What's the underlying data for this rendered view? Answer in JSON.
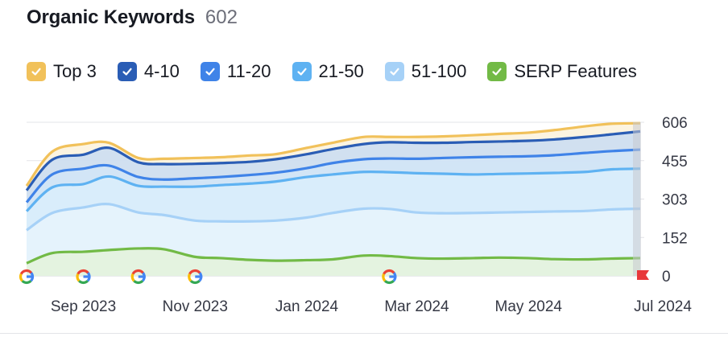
{
  "header": {
    "title": "Organic Keywords",
    "count": "602"
  },
  "legend": [
    {
      "label": "Top 3",
      "color": "#f1c15a",
      "icon": "check-icon"
    },
    {
      "label": "4-10",
      "color": "#2a5db5",
      "icon": "check-icon"
    },
    {
      "label": "11-20",
      "color": "#3f83e8",
      "icon": "check-icon"
    },
    {
      "label": "21-50",
      "color": "#5eb2f2",
      "icon": "check-icon"
    },
    {
      "label": "51-100",
      "color": "#a6d1f7",
      "icon": "check-icon"
    },
    {
      "label": "SERP Features",
      "color": "#72ba46",
      "icon": "check-icon"
    }
  ],
  "chart_data": {
    "type": "area",
    "x": [
      "2023-08-01",
      "2023-08-15",
      "2023-09-01",
      "2023-09-15",
      "2023-10-01",
      "2023-10-15",
      "2023-11-01",
      "2023-11-15",
      "2023-12-01",
      "2023-12-15",
      "2024-01-01",
      "2024-01-15",
      "2024-02-01",
      "2024-02-15",
      "2024-03-01",
      "2024-03-15",
      "2024-04-01",
      "2024-04-15",
      "2024-05-01",
      "2024-05-15",
      "2024-06-01",
      "2024-06-15",
      "2024-07-01"
    ],
    "xticks": [
      "Sep 2023",
      "Nov 2023",
      "Jan 2024",
      "Mar 2024",
      "May 2024",
      "Jul 2024"
    ],
    "yticks": [
      "606",
      "455",
      "303",
      "152",
      "0"
    ],
    "ylim": [
      0,
      606
    ],
    "series": [
      {
        "name": "Top 3",
        "color": "#f1c15a",
        "values": [
          355,
          490,
          520,
          525,
          465,
          462,
          465,
          468,
          475,
          480,
          505,
          525,
          548,
          548,
          548,
          550,
          555,
          560,
          565,
          575,
          590,
          600,
          602
        ]
      },
      {
        "name": "4-10",
        "color": "#2a5db5",
        "values": [
          337,
          458,
          478,
          505,
          448,
          441,
          442,
          445,
          450,
          460,
          480,
          500,
          520,
          527,
          525,
          525,
          528,
          530,
          533,
          538,
          548,
          558,
          570
        ]
      },
      {
        "name": "11-20",
        "color": "#3f83e8",
        "values": [
          290,
          400,
          423,
          435,
          390,
          380,
          385,
          390,
          398,
          407,
          425,
          445,
          460,
          463,
          462,
          465,
          468,
          470,
          472,
          476,
          485,
          492,
          498
        ]
      },
      {
        "name": "21-50",
        "color": "#5eb2f2",
        "values": [
          255,
          349,
          362,
          392,
          355,
          352,
          352,
          358,
          364,
          372,
          390,
          400,
          410,
          409,
          405,
          403,
          400,
          402,
          404,
          406,
          410,
          420,
          423
        ]
      },
      {
        "name": "51-100",
        "color": "#a6d1f7",
        "values": [
          180,
          248,
          270,
          283,
          250,
          240,
          218,
          215,
          215,
          218,
          230,
          248,
          265,
          264,
          250,
          247,
          248,
          250,
          252,
          254,
          256,
          262,
          265
        ]
      },
      {
        "name": "SERP Features",
        "color": "#72ba46",
        "values": [
          50,
          90,
          95,
          102,
          108,
          105,
          75,
          70,
          63,
          60,
          62,
          65,
          80,
          78,
          70,
          68,
          70,
          72,
          70,
          66,
          65,
          68,
          70
        ]
      }
    ],
    "google_update_markers": [
      "2023-08-01",
      "2023-09-01",
      "2023-10-01",
      "2023-11-01",
      "2024-02-15"
    ],
    "grid": true
  }
}
